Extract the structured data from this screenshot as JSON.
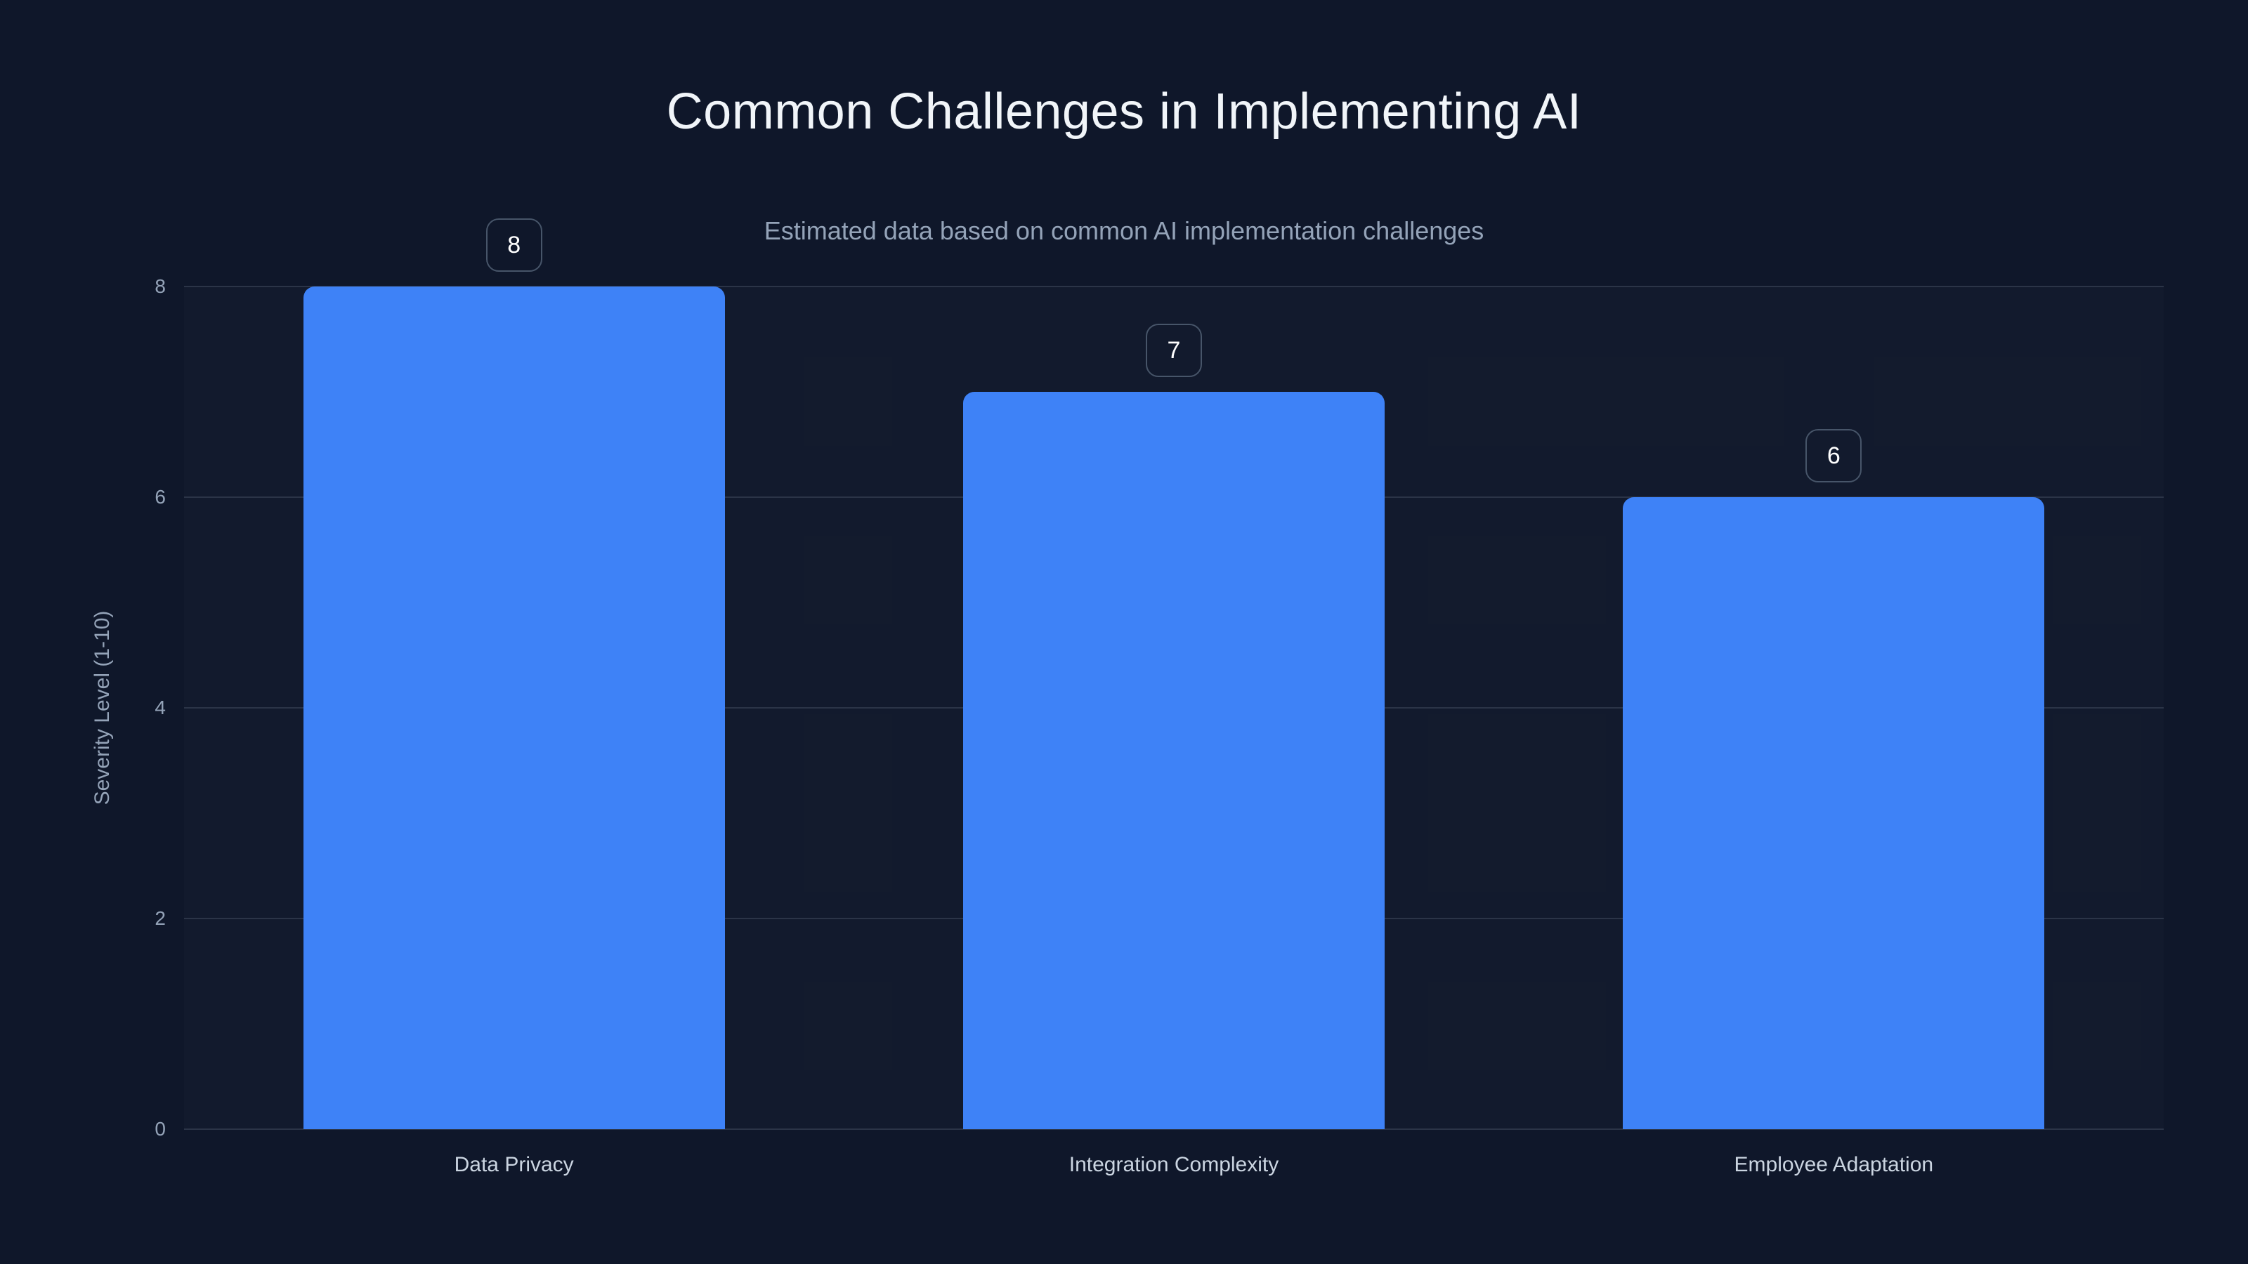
{
  "chart_data": {
    "type": "bar",
    "title": "Common Challenges in Implementing AI",
    "subtitle": "Estimated data based on common AI implementation challenges",
    "categories": [
      "Data Privacy",
      "Integration Complexity",
      "Employee Adaptation"
    ],
    "values": [
      8,
      7,
      6
    ],
    "value_labels": [
      "8",
      "7",
      "6"
    ],
    "xlabel": "",
    "ylabel": "Severity Level (1-10)",
    "ylim": [
      0,
      8
    ],
    "yticks": [
      0,
      2,
      4,
      6,
      8
    ],
    "grid": true,
    "legend_position": "none",
    "colors": {
      "background": "#0f172a",
      "bar": "#3e82f7",
      "gridline": "#2b3447",
      "title_text": "#f1f5f9",
      "subtitle_text": "#94a3b8",
      "tick_text": "#94a3b8",
      "category_text": "#cbd5e1",
      "badge_border": "#475569",
      "badge_text": "#ffffff"
    }
  }
}
